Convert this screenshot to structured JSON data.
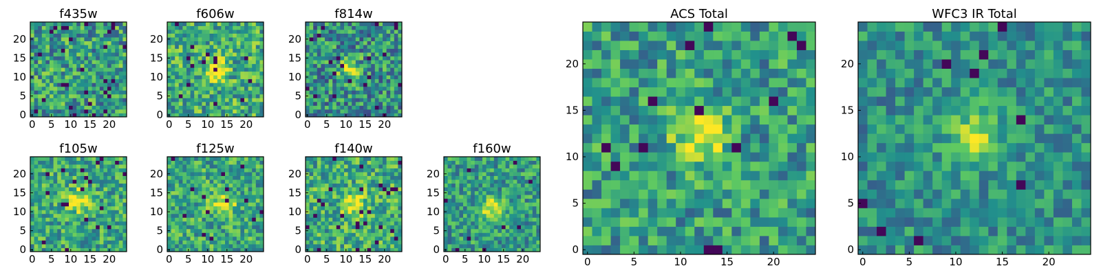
{
  "figure": {
    "colormap": "viridis",
    "colors": [
      "#440154",
      "#3b528b",
      "#21908d",
      "#5dc963",
      "#fde725"
    ]
  },
  "chart_data": [
    {
      "type": "heatmap",
      "title": "f435w",
      "grid": false,
      "xlim": [
        0,
        24
      ],
      "ylim": [
        0,
        24
      ],
      "xticks": [
        "0",
        "5",
        "10",
        "15",
        "20"
      ],
      "yticks": [
        "0",
        "5",
        "10",
        "15",
        "20"
      ],
      "description_values": {
        "size": 25,
        "peak": null,
        "seed": 11,
        "noise": 0.3,
        "bias": 0.55,
        "dark_rate": 0.05
      }
    },
    {
      "type": "heatmap",
      "title": "f606w",
      "grid": false,
      "xlim": [
        0,
        24
      ],
      "ylim": [
        0,
        24
      ],
      "xticks": [
        "0",
        "5",
        "10",
        "15",
        "20"
      ],
      "yticks": [
        "0",
        "5",
        "10",
        "15",
        "20"
      ],
      "description_values": {
        "size": 25,
        "peak": [
          12,
          12
        ],
        "seed": 23,
        "noise": 0.28,
        "bias": 0.62,
        "dark_rate": 0.02
      }
    },
    {
      "type": "heatmap",
      "title": "f814w",
      "grid": false,
      "xlim": [
        0,
        24
      ],
      "ylim": [
        0,
        24
      ],
      "xticks": [
        "0",
        "5",
        "10",
        "15",
        "20"
      ],
      "yticks": [
        "0",
        "5",
        "10",
        "15",
        "20"
      ],
      "description_values": {
        "size": 25,
        "peak": [
          11,
          12
        ],
        "seed": 37,
        "noise": 0.3,
        "bias": 0.5,
        "dark_rate": 0.03
      }
    },
    {
      "type": "heatmap",
      "title": "f105w",
      "grid": false,
      "xlim": [
        0,
        24
      ],
      "ylim": [
        0,
        24
      ],
      "xticks": [
        "0",
        "5",
        "10",
        "15",
        "20"
      ],
      "yticks": [
        "0",
        "5",
        "10",
        "15",
        "20"
      ],
      "description_values": {
        "size": 25,
        "peak": [
          12,
          13
        ],
        "seed": 41,
        "noise": 0.25,
        "bias": 0.6,
        "dark_rate": 0.03
      }
    },
    {
      "type": "heatmap",
      "title": "f125w",
      "grid": false,
      "xlim": [
        0,
        24
      ],
      "ylim": [
        0,
        24
      ],
      "xticks": [
        "0",
        "5",
        "10",
        "15",
        "20"
      ],
      "yticks": [
        "0",
        "5",
        "10",
        "15",
        "20"
      ],
      "description_values": {
        "size": 25,
        "peak": [
          14,
          12
        ],
        "seed": 53,
        "noise": 0.25,
        "bias": 0.6,
        "dark_rate": 0.03
      }
    },
    {
      "type": "heatmap",
      "title": "f140w",
      "grid": false,
      "xlim": [
        0,
        24
      ],
      "ylim": [
        0,
        24
      ],
      "xticks": [
        "0",
        "5",
        "10",
        "15",
        "20"
      ],
      "yticks": [
        "0",
        "5",
        "10",
        "15",
        "20"
      ],
      "description_values": {
        "size": 25,
        "peak": [
          12,
          12
        ],
        "seed": 67,
        "noise": 0.26,
        "bias": 0.62,
        "dark_rate": 0.03
      }
    },
    {
      "type": "heatmap",
      "title": "f160w",
      "grid": false,
      "xlim": [
        0,
        24
      ],
      "ylim": [
        0,
        24
      ],
      "xticks": [
        "0",
        "5",
        "10",
        "15",
        "20"
      ],
      "yticks": [
        "0",
        "5",
        "10",
        "15",
        "20"
      ],
      "description_values": {
        "size": 25,
        "peak": [
          12,
          11
        ],
        "seed": 79,
        "noise": 0.24,
        "bias": 0.55,
        "dark_rate": 0.02
      }
    },
    {
      "type": "heatmap",
      "title": "ACS Total",
      "grid": false,
      "xlim": [
        0,
        24
      ],
      "ylim": [
        0,
        24
      ],
      "xticks": [
        "0",
        "5",
        "10",
        "15",
        "20"
      ],
      "yticks": [
        "0",
        "5",
        "10",
        "15",
        "20"
      ],
      "description_values": {
        "size": 25,
        "peak": [
          12,
          12
        ],
        "seed": 97,
        "noise": 0.25,
        "bias": 0.55,
        "dark_rate": 0.03
      }
    },
    {
      "type": "heatmap",
      "title": "WFC3 IR Total",
      "grid": false,
      "xlim": [
        0,
        24
      ],
      "ylim": [
        0,
        24
      ],
      "xticks": [
        "0",
        "5",
        "10",
        "15",
        "20"
      ],
      "yticks": [
        "0",
        "5",
        "10",
        "15",
        "20"
      ],
      "description_values": {
        "size": 25,
        "peak": [
          12,
          12
        ],
        "seed": 113,
        "noise": 0.2,
        "bias": 0.5,
        "dark_rate": 0.02
      }
    }
  ]
}
